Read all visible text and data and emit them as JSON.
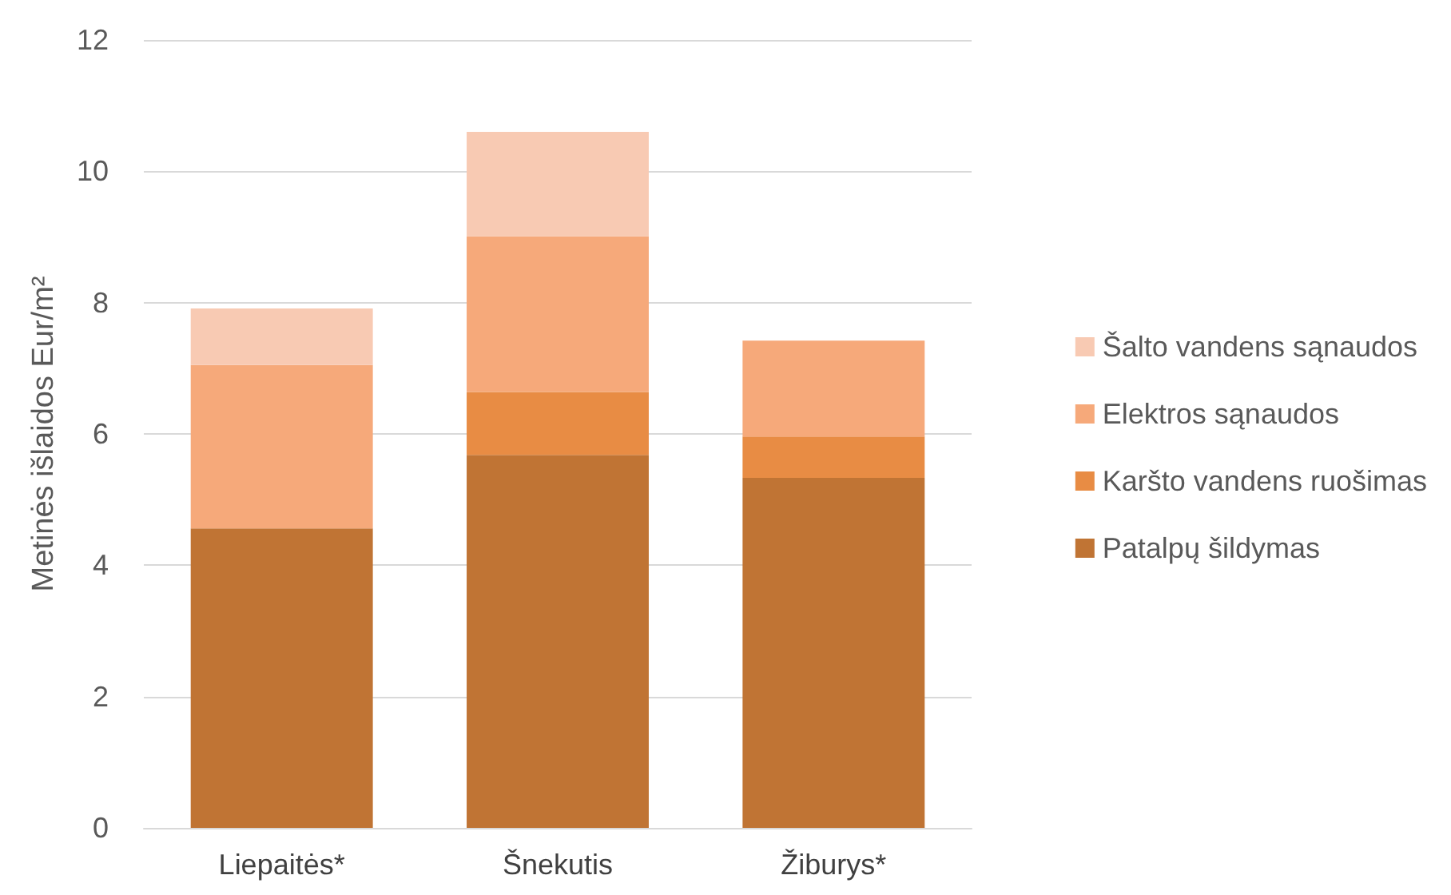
{
  "chart_data": {
    "type": "bar",
    "stacked": true,
    "ylabel": "Metinės išlaidos Eur/m²",
    "categories": [
      "Liepaitės*",
      "Šnekutis",
      "Žiburys*"
    ],
    "series": [
      {
        "name": "Patalpų šildymas",
        "color": "#c07434",
        "values": [
          4.56,
          5.68,
          5.33
        ]
      },
      {
        "name": "Karšto vandens ruošimas",
        "color": "#e88c44",
        "values": [
          null,
          0.96,
          0.63
        ]
      },
      {
        "name": "Elektros sąnaudos",
        "color": "#f6a97a",
        "values": [
          2.49,
          2.37,
          1.46
        ]
      },
      {
        "name": "Šalto vandens sąnaudos",
        "color": "#f8cab3",
        "values": [
          0.86,
          1.59,
          null
        ]
      }
    ],
    "ylim": [
      0,
      12
    ],
    "yticks": [
      0,
      2,
      4,
      6,
      8,
      10,
      12
    ],
    "grid": "y",
    "legend": "right"
  }
}
